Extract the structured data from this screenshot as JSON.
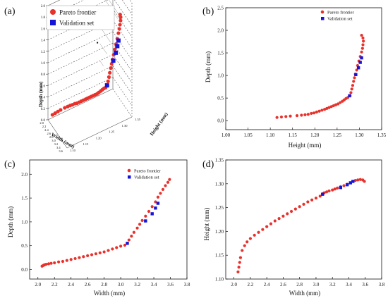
{
  "panel_labels": {
    "a": "(a)",
    "b": "(b)",
    "c": "(c)",
    "d": "(d)"
  },
  "legend": {
    "pareto": "Pareto frontier",
    "validation": "Validation set"
  },
  "colors": {
    "pareto": "#e8312b",
    "validation": "#1515d8",
    "axis": "#111111",
    "guide": "#777777"
  },
  "chart_data": [
    {
      "id": "a",
      "type": "scatter",
      "projection": "3d",
      "xlabel": "Width (mm)",
      "ylabel": "Height (mm)",
      "zlabel": "Depth (mm)",
      "z_ticks": [
        "0.0",
        "0.2",
        "0.4",
        "0.6",
        "0.8",
        "1.0",
        "1.2",
        "1.4",
        "1.6",
        "1.8",
        "2.0"
      ],
      "width_ticks": [
        "2.0",
        "2.2",
        "2.4",
        "2.6",
        "2.8",
        "3.0",
        "3.2",
        "3.4",
        "3.6"
      ],
      "height_ticks": [
        "1.10",
        "1.15",
        "1.20",
        "1.25",
        "1.30",
        "1.35"
      ],
      "xlim": [
        2.0,
        3.6
      ],
      "ylim": [
        1.1,
        1.35
      ],
      "zlim": [
        0.0,
        2.0
      ]
    },
    {
      "id": "b",
      "type": "scatter",
      "xlabel": "Height (mm)",
      "ylabel": "Depth (mm)",
      "xlim": [
        1.0,
        1.35
      ],
      "ylim": [
        -0.2,
        2.5
      ],
      "xticks": [
        "1.00",
        "1.05",
        "1.10",
        "1.15",
        "1.20",
        "1.25",
        "1.30",
        "1.35"
      ],
      "xtick_values": [
        1.0,
        1.05,
        1.1,
        1.15,
        1.2,
        1.25,
        1.3,
        1.35
      ],
      "yticks": [
        "0.0",
        "0.5",
        "1.0",
        "1.5",
        "2.0",
        "2.5"
      ],
      "ytick_values": [
        0.0,
        0.5,
        1.0,
        1.5,
        2.0,
        2.5
      ]
    },
    {
      "id": "c",
      "type": "scatter",
      "xlabel": "Width (mm)",
      "ylabel": "Depth (mm)",
      "xlim": [
        1.9,
        3.8
      ],
      "ylim": [
        -0.2,
        2.3
      ],
      "xticks": [
        "2.0",
        "2.2",
        "2.4",
        "2.6",
        "2.8",
        "3.0",
        "3.2",
        "3.4",
        "3.6",
        "3.8"
      ],
      "xtick_values": [
        2.0,
        2.2,
        2.4,
        2.6,
        2.8,
        3.0,
        3.2,
        3.4,
        3.6,
        3.8
      ],
      "yticks": [
        "0.0",
        "0.5",
        "1.0",
        "1.5",
        "2.0"
      ],
      "ytick_values": [
        0.0,
        0.5,
        1.0,
        1.5,
        2.0
      ]
    },
    {
      "id": "d",
      "type": "scatter",
      "xlabel": "Width (mm)",
      "ylabel": "Height (mm)",
      "xlim": [
        1.9,
        3.8
      ],
      "ylim": [
        1.1,
        1.35
      ],
      "xticks": [
        "2.0",
        "2.2",
        "2.4",
        "2.6",
        "2.8",
        "3.0",
        "3.2",
        "3.4",
        "3.6",
        "3.8"
      ],
      "xtick_values": [
        2.0,
        2.2,
        2.4,
        2.6,
        2.8,
        3.0,
        3.2,
        3.4,
        3.6,
        3.8
      ],
      "yticks": [
        "1.10",
        "1.15",
        "1.20",
        "1.25",
        "1.30",
        "1.35"
      ],
      "ytick_values": [
        1.1,
        1.15,
        1.2,
        1.25,
        1.3,
        1.35
      ]
    }
  ],
  "series": {
    "pareto": [
      [
        2.05,
        1.115,
        0.07
      ],
      [
        2.06,
        1.125,
        0.08
      ],
      [
        2.07,
        1.135,
        0.09
      ],
      [
        2.08,
        1.145,
        0.1
      ],
      [
        2.1,
        1.16,
        0.11
      ],
      [
        2.13,
        1.17,
        0.12
      ],
      [
        2.16,
        1.178,
        0.13
      ],
      [
        2.2,
        1.185,
        0.14
      ],
      [
        2.25,
        1.192,
        0.16
      ],
      [
        2.3,
        1.198,
        0.17
      ],
      [
        2.35,
        1.204,
        0.19
      ],
      [
        2.4,
        1.21,
        0.21
      ],
      [
        2.45,
        1.216,
        0.23
      ],
      [
        2.5,
        1.222,
        0.25
      ],
      [
        2.55,
        1.227,
        0.27
      ],
      [
        2.6,
        1.232,
        0.29
      ],
      [
        2.65,
        1.237,
        0.31
      ],
      [
        2.7,
        1.242,
        0.33
      ],
      [
        2.75,
        1.247,
        0.35
      ],
      [
        2.8,
        1.252,
        0.37
      ],
      [
        2.85,
        1.257,
        0.4
      ],
      [
        2.9,
        1.262,
        0.43
      ],
      [
        2.95,
        1.266,
        0.46
      ],
      [
        3.0,
        1.27,
        0.49
      ],
      [
        3.05,
        1.274,
        0.51
      ],
      [
        3.08,
        1.279,
        0.55
      ],
      [
        3.1,
        1.281,
        0.62
      ],
      [
        3.13,
        1.283,
        0.7
      ],
      [
        3.16,
        1.285,
        0.78
      ],
      [
        3.2,
        1.287,
        0.87
      ],
      [
        3.23,
        1.289,
        0.95
      ],
      [
        3.26,
        1.291,
        1.03
      ],
      [
        3.3,
        1.294,
        1.12
      ],
      [
        3.34,
        1.296,
        1.22
      ],
      [
        3.38,
        1.299,
        1.32
      ],
      [
        3.42,
        1.302,
        1.42
      ],
      [
        3.45,
        1.305,
        1.52
      ],
      [
        3.48,
        1.307,
        1.6
      ],
      [
        3.51,
        1.308,
        1.68
      ],
      [
        3.54,
        1.309,
        1.76
      ],
      [
        3.57,
        1.308,
        1.83
      ],
      [
        3.59,
        1.305,
        1.89
      ]
    ],
    "validation": [
      [
        3.08,
        1.278,
        0.55
      ],
      [
        3.3,
        1.292,
        1.02
      ],
      [
        3.38,
        1.298,
        1.17
      ],
      [
        3.42,
        1.302,
        1.29
      ],
      [
        3.45,
        1.305,
        1.39
      ]
    ],
    "a_guides_width": [
      2.0,
      2.3,
      2.6,
      2.9,
      3.2,
      3.5,
      3.6
    ],
    "a_guides_depth": [
      0.3,
      0.6,
      0.9,
      1.2,
      1.5,
      1.8,
      1.9
    ]
  }
}
